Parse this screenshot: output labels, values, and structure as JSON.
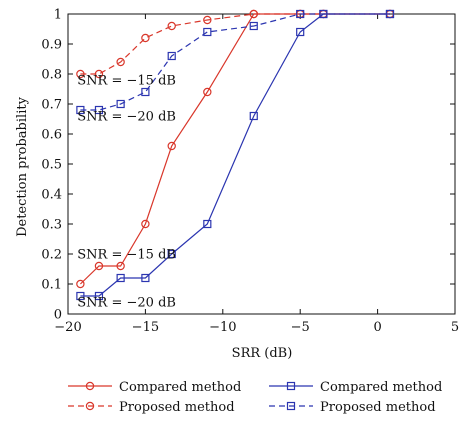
{
  "chart_data": {
    "type": "line",
    "title": "",
    "xlabel": "SRR (dB)",
    "ylabel": "Detection probability",
    "xlim": [
      -20,
      5
    ],
    "ylim": [
      0,
      1
    ],
    "xticks": [
      -20,
      -15,
      -10,
      -5,
      0,
      5
    ],
    "yticks": [
      0,
      0.1,
      0.2,
      0.3,
      0.4,
      0.5,
      0.6,
      0.7,
      0.8,
      0.9,
      1
    ],
    "xtick_labels": [
      "−20",
      "−15",
      "−10",
      "−5",
      "0",
      "5"
    ],
    "ytick_labels": [
      "0",
      "0.1",
      "0.2",
      "0.3",
      "0.4",
      "0.5",
      "0.6",
      "0.7",
      "0.8",
      "0.9",
      "1"
    ],
    "grid": false,
    "legend_placement": "bottom",
    "annotations": [
      {
        "text": "SNR = −15 dB",
        "x": -19.4,
        "y": 0.765
      },
      {
        "text": "SNR = −20 dB",
        "x": -19.4,
        "y": 0.645
      },
      {
        "text": "SNR = −15 dB",
        "x": -19.4,
        "y": 0.185
      },
      {
        "text": "SNR = −20 dB",
        "x": -19.4,
        "y": 0.025
      }
    ],
    "series": [
      {
        "name": "Compared method",
        "color": "#d9372b",
        "dash": "solid",
        "marker": "circle",
        "x": [
          -19.2,
          -18,
          -16.6,
          -15,
          -13.3,
          -11,
          -8,
          -5,
          -3.5,
          0.8
        ],
        "y": [
          0.1,
          0.16,
          0.16,
          0.3,
          0.56,
          0.74,
          1.0,
          1.0,
          1.0,
          1.0
        ]
      },
      {
        "name": "Proposed method",
        "color": "#d9372b",
        "dash": "dashed",
        "marker": "circle",
        "x": [
          -19.2,
          -18,
          -16.6,
          -15,
          -13.3,
          -11,
          -8,
          -5,
          -3.5,
          0.8
        ],
        "y": [
          0.8,
          0.8,
          0.84,
          0.92,
          0.96,
          0.98,
          1.0,
          1.0,
          1.0,
          1.0
        ]
      },
      {
        "name": "Compared method",
        "color": "#2b35b0",
        "dash": "solid",
        "marker": "square",
        "x": [
          -19.2,
          -18,
          -16.6,
          -15,
          -13.3,
          -11,
          -8,
          -5,
          -3.5,
          0.8
        ],
        "y": [
          0.06,
          0.06,
          0.12,
          0.12,
          0.2,
          0.3,
          0.66,
          0.94,
          1.0,
          1.0
        ]
      },
      {
        "name": "Proposed method",
        "color": "#2b35b0",
        "dash": "dashed",
        "marker": "square",
        "x": [
          -19.2,
          -18,
          -16.6,
          -15,
          -13.3,
          -11,
          -8,
          -5,
          -3.5,
          0.8
        ],
        "y": [
          0.68,
          0.68,
          0.7,
          0.74,
          0.86,
          0.94,
          0.96,
          1.0,
          1.0,
          1.0
        ]
      }
    ]
  }
}
